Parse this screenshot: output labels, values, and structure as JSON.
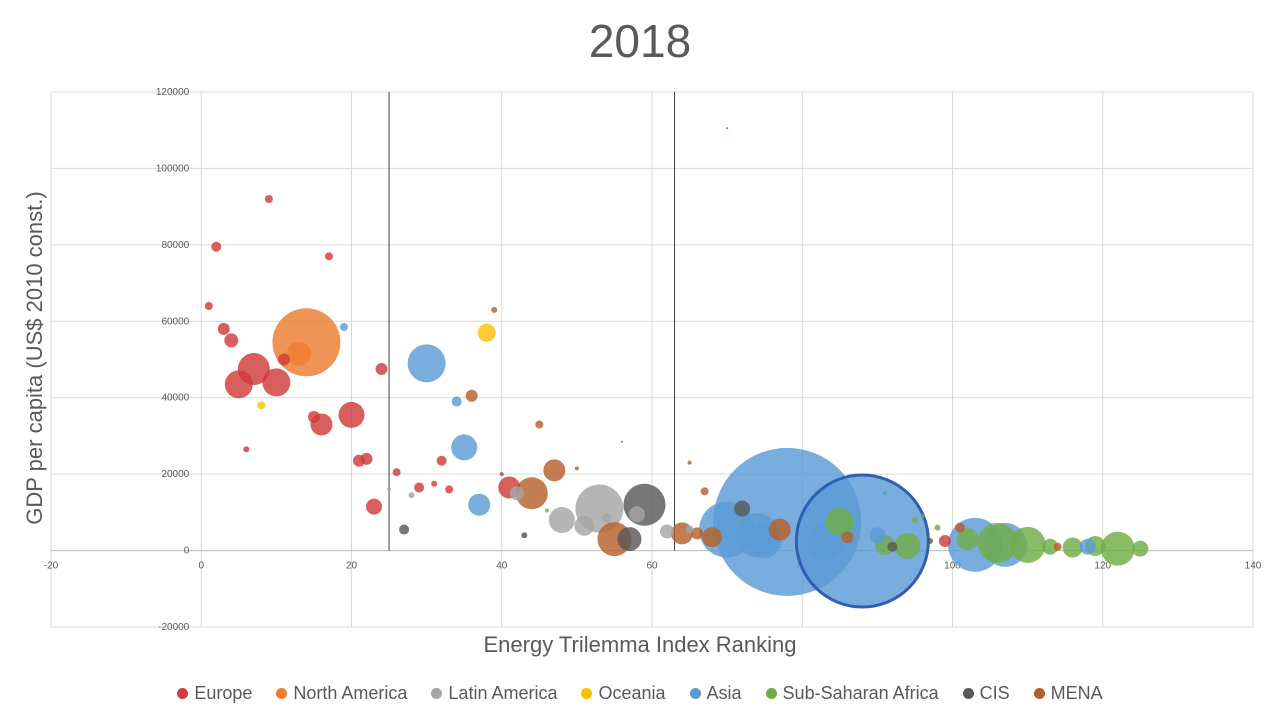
{
  "chart_data": {
    "type": "scatter",
    "subtype": "bubble",
    "title": "2018",
    "xlabel": "Energy Trilemma Index Ranking",
    "ylabel": "GDP per capita (US$ 2010 const.)",
    "xlim": [
      -20,
      140
    ],
    "ylim": [
      -20000,
      120000
    ],
    "x_ticks": [
      -20,
      0,
      20,
      40,
      60,
      80,
      100,
      120,
      140
    ],
    "y_ticks": [
      -20000,
      0,
      20000,
      40000,
      60000,
      80000,
      100000,
      120000
    ],
    "grid": true,
    "legend_position": "bottom",
    "vertical_lines": [
      25,
      63
    ],
    "series": [
      {
        "name": "Europe",
        "color": "#d13b3b",
        "points": [
          {
            "x": 1,
            "y": 64000,
            "s": 4
          },
          {
            "x": 2,
            "y": 79500,
            "s": 5
          },
          {
            "x": 3,
            "y": 58000,
            "s": 6
          },
          {
            "x": 4,
            "y": 55000,
            "s": 7
          },
          {
            "x": 5,
            "y": 43500,
            "s": 14
          },
          {
            "x": 6,
            "y": 26500,
            "s": 3
          },
          {
            "x": 7,
            "y": 47500,
            "s": 16
          },
          {
            "x": 9,
            "y": 92000,
            "s": 4
          },
          {
            "x": 10,
            "y": 44000,
            "s": 14
          },
          {
            "x": 11,
            "y": 50000,
            "s": 6
          },
          {
            "x": 15,
            "y": 35000,
            "s": 6
          },
          {
            "x": 16,
            "y": 33000,
            "s": 11
          },
          {
            "x": 17,
            "y": 77000,
            "s": 4
          },
          {
            "x": 20,
            "y": 35500,
            "s": 13
          },
          {
            "x": 21,
            "y": 23500,
            "s": 6
          },
          {
            "x": 22,
            "y": 24000,
            "s": 6
          },
          {
            "x": 23,
            "y": 11500,
            "s": 8
          },
          {
            "x": 24,
            "y": 47500,
            "s": 6
          },
          {
            "x": 26,
            "y": 20500,
            "s": 4
          },
          {
            "x": 29,
            "y": 16500,
            "s": 5
          },
          {
            "x": 31,
            "y": 17500,
            "s": 3
          },
          {
            "x": 32,
            "y": 23500,
            "s": 5
          },
          {
            "x": 33,
            "y": 16000,
            "s": 4
          },
          {
            "x": 40,
            "y": 20000,
            "s": 2
          },
          {
            "x": 41,
            "y": 16500,
            "s": 11
          },
          {
            "x": 56,
            "y": 28500,
            "s": 1
          },
          {
            "x": 70,
            "y": 110500,
            "s": 1
          },
          {
            "x": 99,
            "y": 2500,
            "s": 6
          }
        ]
      },
      {
        "name": "North America",
        "color": "#ed7d31",
        "points": [
          {
            "x": 13,
            "y": 51500,
            "s": 12
          },
          {
            "x": 14,
            "y": 54500,
            "s": 34
          }
        ]
      },
      {
        "name": "Latin America",
        "color": "#a5a5a5",
        "points": [
          {
            "x": 25,
            "y": 16000,
            "s": 2
          },
          {
            "x": 28,
            "y": 14500,
            "s": 3
          },
          {
            "x": 42,
            "y": 15000,
            "s": 7
          },
          {
            "x": 48,
            "y": 8000,
            "s": 13
          },
          {
            "x": 51,
            "y": 6500,
            "s": 10
          },
          {
            "x": 53,
            "y": 11000,
            "s": 24
          },
          {
            "x": 54,
            "y": 8500,
            "s": 5
          },
          {
            "x": 58,
            "y": 9500,
            "s": 8
          },
          {
            "x": 62,
            "y": 5000,
            "s": 7
          },
          {
            "x": 65,
            "y": 5500,
            "s": 4
          }
        ]
      },
      {
        "name": "Oceania",
        "color": "#ffc000",
        "points": [
          {
            "x": 8,
            "y": 38000,
            "s": 4
          },
          {
            "x": 38,
            "y": 57000,
            "s": 9
          }
        ]
      },
      {
        "name": "Asia",
        "color": "#5b9bd5",
        "points": [
          {
            "x": 19,
            "y": 58500,
            "s": 4
          },
          {
            "x": 30,
            "y": 49000,
            "s": 19
          },
          {
            "x": 34,
            "y": 39000,
            "s": 5
          },
          {
            "x": 35,
            "y": 27000,
            "s": 13
          },
          {
            "x": 37,
            "y": 12000,
            "s": 11
          },
          {
            "x": 70,
            "y": 5500,
            "s": 28
          },
          {
            "x": 74,
            "y": 4000,
            "s": 22
          },
          {
            "x": 75,
            "y": 2500,
            "s": 17
          },
          {
            "x": 78,
            "y": 7500,
            "s": 74
          },
          {
            "x": 83,
            "y": 2000,
            "s": 18
          },
          {
            "x": 88,
            "y": 2500,
            "s": 66
          },
          {
            "x": 90,
            "y": 4000,
            "s": 8
          },
          {
            "x": 91,
            "y": 15000,
            "s": 2
          },
          {
            "x": 103,
            "y": 1500,
            "s": 27
          },
          {
            "x": 107,
            "y": 1500,
            "s": 22
          },
          {
            "x": 118,
            "y": 1000,
            "s": 8
          }
        ]
      },
      {
        "name": "Sub-Saharan Africa",
        "color": "#70ad47",
        "points": [
          {
            "x": 46,
            "y": 10500,
            "s": 2
          },
          {
            "x": 85,
            "y": 7500,
            "s": 14
          },
          {
            "x": 91,
            "y": 1500,
            "s": 10
          },
          {
            "x": 94,
            "y": 1200,
            "s": 13
          },
          {
            "x": 95,
            "y": 8000,
            "s": 3
          },
          {
            "x": 96,
            "y": 9000,
            "s": 2
          },
          {
            "x": 98,
            "y": 6000,
            "s": 3
          },
          {
            "x": 102,
            "y": 3000,
            "s": 11
          },
          {
            "x": 106,
            "y": 2000,
            "s": 20
          },
          {
            "x": 110,
            "y": 1500,
            "s": 18
          },
          {
            "x": 113,
            "y": 1000,
            "s": 8
          },
          {
            "x": 116,
            "y": 800,
            "s": 10
          },
          {
            "x": 119,
            "y": 1200,
            "s": 10
          },
          {
            "x": 122,
            "y": 500,
            "s": 17
          },
          {
            "x": 125,
            "y": 500,
            "s": 8
          }
        ]
      },
      {
        "name": "CIS",
        "color": "#595959",
        "points": [
          {
            "x": 27,
            "y": 5500,
            "s": 5
          },
          {
            "x": 43,
            "y": 4000,
            "s": 3
          },
          {
            "x": 57,
            "y": 3000,
            "s": 12
          },
          {
            "x": 59,
            "y": 12000,
            "s": 21
          },
          {
            "x": 72,
            "y": 11000,
            "s": 8
          },
          {
            "x": 92,
            "y": 1000,
            "s": 5
          },
          {
            "x": 97,
            "y": 2500,
            "s": 3
          }
        ]
      },
      {
        "name": "MENA",
        "color": "#b5602b",
        "points": [
          {
            "x": 39,
            "y": 63000,
            "s": 3
          },
          {
            "x": 36,
            "y": 40500,
            "s": 6
          },
          {
            "x": 45,
            "y": 33000,
            "s": 4
          },
          {
            "x": 47,
            "y": 21000,
            "s": 11
          },
          {
            "x": 50,
            "y": 21500,
            "s": 2
          },
          {
            "x": 44,
            "y": 15000,
            "s": 16
          },
          {
            "x": 55,
            "y": 3000,
            "s": 17
          },
          {
            "x": 64,
            "y": 4500,
            "s": 11
          },
          {
            "x": 65,
            "y": 23000,
            "s": 2
          },
          {
            "x": 66,
            "y": 4500,
            "s": 6
          },
          {
            "x": 67,
            "y": 15500,
            "s": 4
          },
          {
            "x": 68,
            "y": 3500,
            "s": 10
          },
          {
            "x": 77,
            "y": 5500,
            "s": 11
          },
          {
            "x": 86,
            "y": 3500,
            "s": 6
          },
          {
            "x": 101,
            "y": 6000,
            "s": 5
          },
          {
            "x": 114,
            "y": 1000,
            "s": 4
          }
        ]
      }
    ]
  }
}
